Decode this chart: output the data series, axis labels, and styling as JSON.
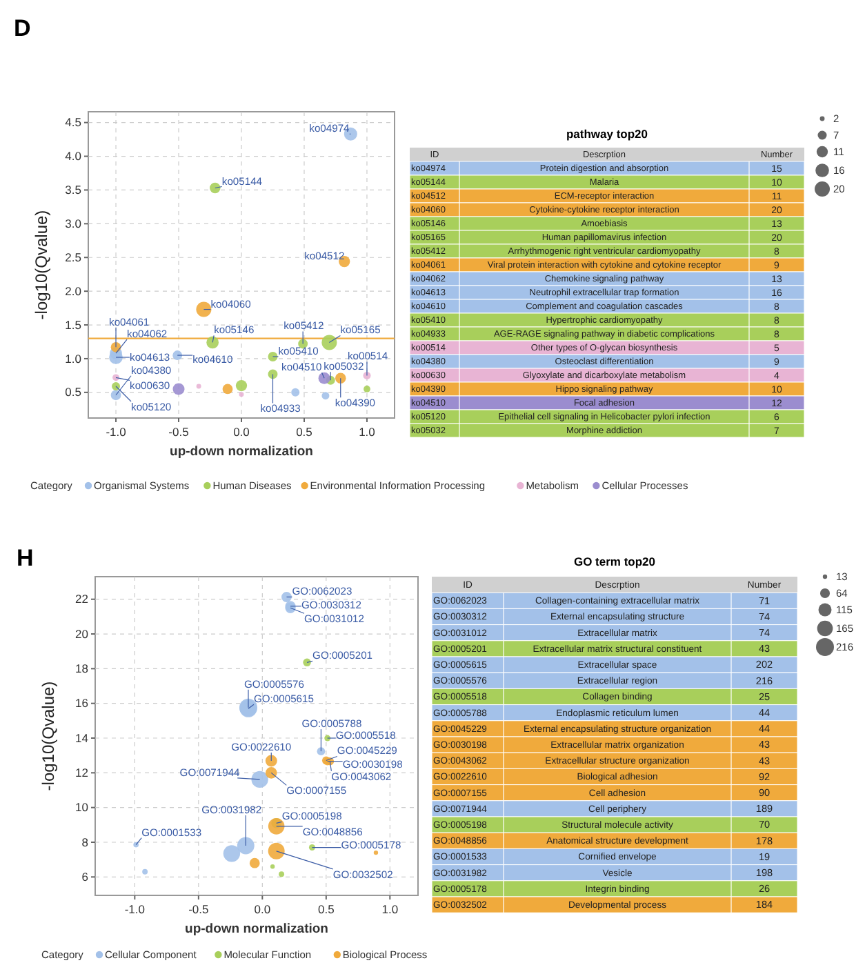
{
  "chart_data": [
    {
      "type": "bubble",
      "xlabel": "up-down normalization",
      "ylabel": "-log10(Qvalue)",
      "legend_title": "Category",
      "legend": "bottom",
      "grid": true,
      "marker": "circle",
      "xlim": [
        -1.22,
        1.22
      ],
      "ylim": [
        0.12,
        4.66
      ],
      "xticks": [
        {
          "value": -1,
          "label": "-1.0"
        },
        {
          "value": -0.5,
          "label": "-0.5"
        },
        {
          "value": 0,
          "label": "0.0"
        },
        {
          "value": 0.5,
          "label": "0.5"
        },
        {
          "value": 1,
          "label": "1.0"
        }
      ],
      "yticks": [
        0.5,
        {
          "value": 1,
          "label": "1.0"
        },
        1.5,
        {
          "value": 2,
          "label": "2.0"
        },
        2.5,
        {
          "value": 3,
          "label": "3.0"
        },
        3.5,
        {
          "value": 4,
          "label": "4.0"
        },
        4.5
      ],
      "size_legend": [
        2,
        7,
        11,
        16,
        20
      ],
      "ref_lines": [
        {
          "axis": "y",
          "value": 1.3,
          "color": "#f0aa3c"
        }
      ],
      "series": [
        {
          "name": "Organismal Systems",
          "color": "#a3c1e9",
          "x": [
            0.87,
            -1.0,
            -1.0,
            -0.51,
            -1.0,
            0.43,
            0.67
          ],
          "values": [
            4.33,
            1.08,
            1.02,
            1.05,
            0.46,
            0.5,
            0.45
          ],
          "sizes": [
            15,
            13,
            16,
            8,
            9,
            6,
            5
          ]
        },
        {
          "name": "Human Diseases",
          "color": "#a8cf5b",
          "x": [
            -0.21,
            -0.23,
            0.7,
            0.49,
            0.25,
            0.25,
            -1.0,
            0.71,
            0,
            1.0
          ],
          "values": [
            3.53,
            1.24,
            1.24,
            1.22,
            1.03,
            0.77,
            0.59,
            0.68,
            0.6,
            0.55
          ],
          "sizes": [
            10,
            13,
            20,
            8,
            8,
            8,
            6,
            7,
            11,
            4
          ]
        },
        {
          "name": "Environmental Information Processing",
          "color": "#f0aa3c",
          "x": [
            0.82,
            -0.3,
            -1.0,
            0.79,
            -0.11
          ],
          "values": [
            2.44,
            1.73,
            1.17,
            0.71,
            0.55
          ],
          "sizes": [
            11,
            20,
            9,
            10,
            9
          ]
        },
        {
          "name": "Metabolism",
          "color": "#e8b4d4",
          "x": [
            1.0,
            -1.0,
            -0.34,
            0
          ],
          "values": [
            0.75,
            0.72,
            0.59,
            0.47
          ],
          "sizes": [
            5,
            4,
            2,
            2
          ]
        },
        {
          "name": "Cellular Processes",
          "color": "#9b8dcf",
          "x": [
            0.66,
            -0.5
          ],
          "values": [
            0.71,
            0.55
          ],
          "sizes": [
            12,
            12
          ]
        }
      ],
      "annotations": [
        "D",
        {
          "text": "ko04974",
          "x": 0.87,
          "y": 4.33
        },
        {
          "text": "ko05144",
          "x": -0.21,
          "y": 3.53
        },
        {
          "text": "ko04512",
          "x": 0.82,
          "y": 2.44
        },
        {
          "text": "ko04060",
          "x": -0.3,
          "y": 1.73
        },
        {
          "text": "ko05146",
          "x": -0.23,
          "y": 1.24
        },
        {
          "text": "ko05165",
          "x": 0.7,
          "y": 1.24
        },
        {
          "text": "ko05412",
          "x": 0.49,
          "y": 1.22
        },
        {
          "text": "ko04061",
          "x": -1.0,
          "y": 1.17
        },
        {
          "text": "ko04062",
          "x": -1.0,
          "y": 1.08
        },
        {
          "text": "ko04613",
          "x": -1.0,
          "y": 1.02
        },
        {
          "text": "ko04610",
          "x": -0.51,
          "y": 1.05
        },
        {
          "text": "ko05410",
          "x": 0.25,
          "y": 1.03
        },
        {
          "text": "ko00514",
          "x": 1.0,
          "y": 0.75
        },
        {
          "text": "ko04510",
          "x": 0.66,
          "y": 0.71
        },
        {
          "text": "ko05032",
          "x": 0.71,
          "y": 0.68
        },
        {
          "text": "ko04390",
          "x": 0.79,
          "y": 0.71
        },
        {
          "text": "ko04933",
          "x": 0.25,
          "y": 0.77
        },
        {
          "text": "ko04380",
          "x": -1.0,
          "y": 0.46
        },
        {
          "text": "ko00630",
          "x": -1.0,
          "y": 0.72
        },
        {
          "text": "ko05120",
          "x": -1.0,
          "y": 0.59
        }
      ]
    },
    {
      "type": "other",
      "title": "pathway top20",
      "data_labels": true,
      "annotations": [
        "ID",
        "Descrption",
        "Number",
        "Protein digestion and absorption",
        "Malaria",
        "ECM-receptor interaction",
        "Cytokine-cytokine receptor interaction",
        "Amoebiasis",
        "Human papillomavirus infection",
        "Arrhythmogenic right ventricular cardiomyopathy",
        "Viral protein interaction with cytokine and cytokine receptor",
        "Chemokine signaling pathway",
        "Neutrophil extracellular trap formation",
        "Complement and coagulation cascades",
        "Hypertrophic cardiomyopathy",
        "AGE-RAGE signaling pathway in diabetic complications",
        "Other types of O-glycan biosynthesis",
        "Osteoclast differentiation",
        "Glyoxylate and dicarboxylate metabolism",
        "Hippo signaling pathway",
        "Focal adhesion",
        "Epithelial cell signaling in Helicobacter pylori infection",
        "Morphine addiction"
      ],
      "categories": [
        "ko04974",
        "ko05144",
        "ko04512",
        "ko04060",
        "ko05146",
        "ko05165",
        "ko05412",
        "ko04061",
        "ko04062",
        "ko04613",
        "ko04610",
        "ko05410",
        "ko04933",
        "ko00514",
        "ko04380",
        "ko00630",
        "ko04390",
        "ko04510",
        "ko05120",
        "ko05032"
      ],
      "values": [
        15,
        10,
        11,
        20,
        13,
        20,
        8,
        9,
        13,
        16,
        8,
        8,
        8,
        5,
        9,
        4,
        10,
        12,
        6,
        7
      ],
      "colors": [
        "#a3c1e9",
        "#a8cf5b",
        "#f0aa3c",
        "#f0aa3c",
        "#a8cf5b",
        "#a8cf5b",
        "#a8cf5b",
        "#f0aa3c",
        "#a3c1e9",
        "#a3c1e9",
        "#a3c1e9",
        "#a8cf5b",
        "#a8cf5b",
        "#e8b4d4",
        "#a3c1e9",
        "#e8b4d4",
        "#f0aa3c",
        "#9b8dcf",
        "#a8cf5b",
        "#a8cf5b"
      ]
    },
    {
      "type": "bubble",
      "xlabel": "up-down normalization",
      "ylabel": "-log10(Qvalue)",
      "legend_title": "Category",
      "legend": "bottom",
      "grid": true,
      "marker": "circle",
      "xlim": [
        -1.31,
        1.22
      ],
      "ylim": [
        4.94,
        23.3
      ],
      "xticks": [
        {
          "value": -1,
          "label": "-1.0"
        },
        {
          "value": -0.5,
          "label": "-0.5"
        },
        {
          "value": 0,
          "label": "0.0"
        },
        {
          "value": 0.5,
          "label": "0.5"
        },
        {
          "value": 1,
          "label": "1.0"
        }
      ],
      "yticks": [
        6,
        8,
        10,
        12,
        14,
        16,
        18,
        20,
        22
      ],
      "size_legend": [
        13,
        64,
        115,
        165,
        216
      ],
      "series": [
        {
          "name": "Cellular Component",
          "color": "#a3c1e9",
          "x": [
            0.19,
            0.22,
            0.22,
            -0.11,
            -0.11,
            0.46,
            -0.02,
            -0.99,
            -0.13,
            -0.24,
            -0.92
          ],
          "values": [
            22.13,
            21.6,
            21.5,
            15.76,
            15.7,
            13.24,
            11.62,
            7.86,
            7.8,
            7.35,
            6.3
          ],
          "sizes": [
            71,
            74,
            74,
            216,
            202,
            44,
            189,
            19,
            198,
            190,
            20
          ]
        },
        {
          "name": "Molecular Function",
          "color": "#a8cf5b",
          "x": [
            0.35,
            0.51,
            0.11,
            0.39,
            0.08,
            0.15
          ],
          "values": [
            18.36,
            14.0,
            9.1,
            7.7,
            6.6,
            6.16
          ],
          "sizes": [
            43,
            25,
            70,
            26,
            13,
            20
          ]
        },
        {
          "name": "Biological Process",
          "color": "#f0aa3c",
          "x": [
            0.5,
            0.51,
            0.53,
            0.07,
            0.07,
            0.11,
            0.11,
            -0.06,
            0.89
          ],
          "values": [
            12.71,
            12.66,
            12.66,
            12.69,
            12.0,
            8.92,
            7.49,
            6.8,
            7.4
          ],
          "sizes": [
            44,
            43,
            43,
            92,
            90,
            178,
            184,
            70,
            13
          ]
        }
      ],
      "annotations": [
        "H",
        {
          "text": "GO:0062023",
          "x": 0.19,
          "y": 22.13
        },
        {
          "text": "GO:0030312",
          "x": 0.22,
          "y": 21.6
        },
        {
          "text": "GO:0031012",
          "x": 0.22,
          "y": 21.5
        },
        {
          "text": "GO:0005201",
          "x": 0.35,
          "y": 18.36
        },
        {
          "text": "GO:0005576",
          "x": -0.11,
          "y": 15.76
        },
        {
          "text": "GO:0005615",
          "x": -0.11,
          "y": 15.7
        },
        {
          "text": "GO:0005788",
          "x": 0.46,
          "y": 13.24
        },
        {
          "text": "GO:0005518",
          "x": 0.51,
          "y": 14.0
        },
        {
          "text": "GO:0045229",
          "x": 0.5,
          "y": 12.71
        },
        {
          "text": "GO:0030198",
          "x": 0.51,
          "y": 12.66
        },
        {
          "text": "GO:0043062",
          "x": 0.53,
          "y": 12.66
        },
        {
          "text": "GO:0022610",
          "x": 0.07,
          "y": 12.69
        },
        {
          "text": "GO:0007155",
          "x": 0.07,
          "y": 12.0
        },
        {
          "text": "GO:0071944",
          "x": -0.02,
          "y": 11.62
        },
        {
          "text": "GO:0005198",
          "x": 0.11,
          "y": 9.1
        },
        {
          "text": "GO:0048856",
          "x": 0.11,
          "y": 8.92
        },
        {
          "text": "GO:0001533",
          "x": -0.99,
          "y": 7.86
        },
        {
          "text": "GO:0031982",
          "x": -0.13,
          "y": 7.8
        },
        {
          "text": "GO:0005178",
          "x": 0.39,
          "y": 7.7
        },
        {
          "text": "GO:0032502",
          "x": 0.11,
          "y": 7.49
        }
      ]
    },
    {
      "type": "other",
      "title": "GO term top20",
      "data_labels": true,
      "annotations": [
        "ID",
        "Descrption",
        "Number",
        "Collagen-containing extracellular matrix",
        "External encapsulating structure",
        "Extracellular matrix",
        "Extracellular matrix structural constituent",
        "Extracellular space",
        "Extracellular region",
        "Collagen binding",
        "Endoplasmic reticulum lumen",
        "External encapsulating structure organization",
        "Extracellular matrix organization",
        "Extracellular structure organization",
        "Biological adhesion",
        "Cell adhesion",
        "Cell periphery",
        "Structural molecule activity",
        "Anatomical structure development",
        "Cornified envelope",
        "Vesicle",
        "Integrin binding",
        "Developmental process"
      ],
      "categories": [
        "GO:0062023",
        "GO:0030312",
        "GO:0031012",
        "GO:0005201",
        "GO:0005615",
        "GO:0005576",
        "GO:0005518",
        "GO:0005788",
        "GO:0045229",
        "GO:0030198",
        "GO:0043062",
        "GO:0022610",
        "GO:0007155",
        "GO:0071944",
        "GO:0005198",
        "GO:0048856",
        "GO:0001533",
        "GO:0031982",
        "GO:0005178",
        "GO:0032502"
      ],
      "values": [
        71,
        74,
        74,
        43,
        202,
        216,
        25,
        44,
        44,
        43,
        43,
        92,
        90,
        189,
        70,
        178,
        19,
        198,
        26,
        184
      ],
      "colors": [
        "#a3c1e9",
        "#a3c1e9",
        "#a3c1e9",
        "#a8cf5b",
        "#a3c1e9",
        "#a3c1e9",
        "#a8cf5b",
        "#a3c1e9",
        "#f0aa3c",
        "#f0aa3c",
        "#f0aa3c",
        "#f0aa3c",
        "#f0aa3c",
        "#a3c1e9",
        "#a8cf5b",
        "#f0aa3c",
        "#a3c1e9",
        "#a3c1e9",
        "#a8cf5b",
        "#f0aa3c"
      ]
    }
  ]
}
